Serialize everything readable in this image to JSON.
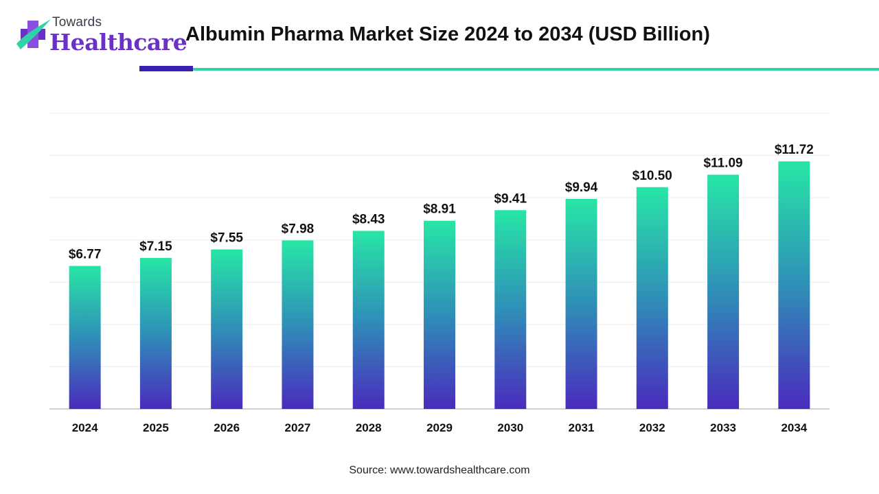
{
  "brand": {
    "line1": "Towards",
    "line2": "Healthcare",
    "logo_icon": "cross-plus-icon",
    "colors": {
      "purple": "#6a30c8",
      "teal": "#2fd3a7"
    }
  },
  "source": "Source: www.towardshealthcare.com",
  "chart_data": {
    "type": "bar",
    "title": "Albumin Pharma Market Size 2024 to 2034 (USD Billion)",
    "xlabel": "",
    "ylabel": "",
    "categories": [
      "2024",
      "2025",
      "2026",
      "2027",
      "2028",
      "2029",
      "2030",
      "2031",
      "2032",
      "2033",
      "2034"
    ],
    "values": [
      6.77,
      7.15,
      7.55,
      7.98,
      8.43,
      8.91,
      9.41,
      9.94,
      10.5,
      11.09,
      11.72
    ],
    "value_labels": [
      "$6.77",
      "$7.15",
      "$7.55",
      "$7.98",
      "$8.43",
      "$8.91",
      "$9.41",
      "$9.94",
      "$10.50",
      "$11.09",
      "$11.72"
    ],
    "ylim": [
      0,
      14
    ],
    "grid": true,
    "legend": "none",
    "colors": {
      "bar_top": "#27e6a6",
      "bar_mid": "#2f8fb8",
      "bar_bottom": "#4a2bbd",
      "grid": "#ececec",
      "axis": "#bfbfbf"
    }
  }
}
